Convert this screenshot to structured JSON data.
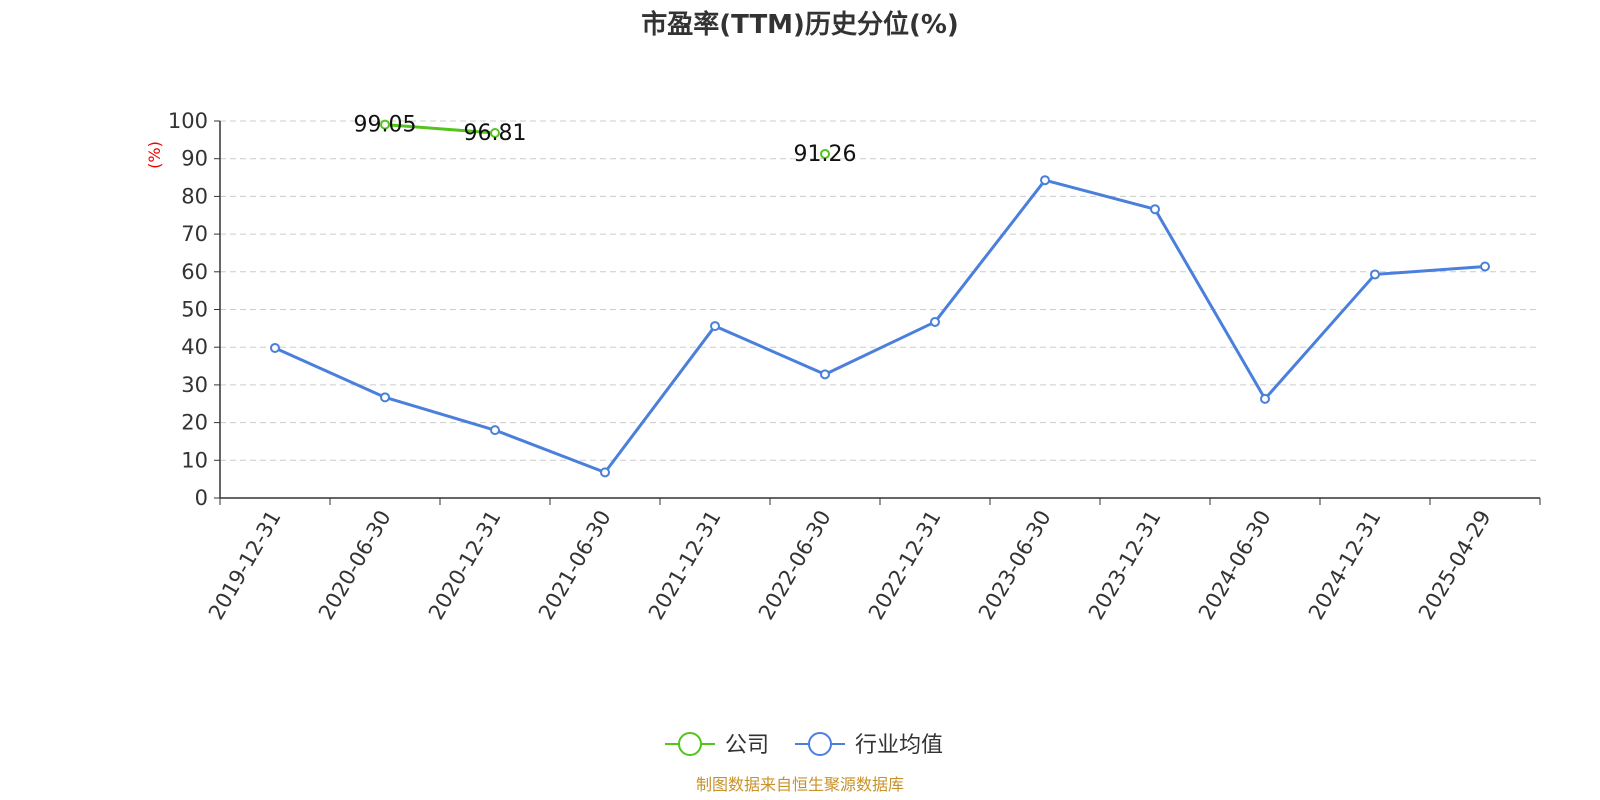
{
  "chart_data": {
    "type": "line",
    "title": "市盈率(TTM)历史分位(%)",
    "ylabel": "(%)",
    "ylim": [
      0,
      100
    ],
    "yticks": [
      0,
      10,
      20,
      30,
      40,
      50,
      60,
      70,
      80,
      90,
      100
    ],
    "categories": [
      "2019-12-31",
      "2020-06-30",
      "2020-12-31",
      "2021-06-30",
      "2021-12-31",
      "2022-06-30",
      "2022-12-31",
      "2023-06-30",
      "2023-12-31",
      "2024-06-30",
      "2024-12-31",
      "2025-04-29"
    ],
    "grid": true,
    "legend_position": "bottom",
    "series": [
      {
        "name": "公司",
        "color": "#52c41a",
        "values": [
          null,
          99.05,
          96.81,
          null,
          null,
          91.26,
          null,
          null,
          null,
          null,
          null,
          null
        ],
        "value_labels": [
          null,
          "99.05",
          "96.81",
          null,
          null,
          "91.26",
          null,
          null,
          null,
          null,
          null,
          null
        ]
      },
      {
        "name": "行业均值",
        "color": "#4a7fdc",
        "values": [
          39.8,
          26.7,
          18.0,
          6.8,
          45.6,
          32.8,
          46.7,
          84.3,
          76.6,
          26.3,
          59.3,
          61.4
        ]
      }
    ]
  },
  "footer": {
    "source": "制图数据来自恒生聚源数据库"
  }
}
